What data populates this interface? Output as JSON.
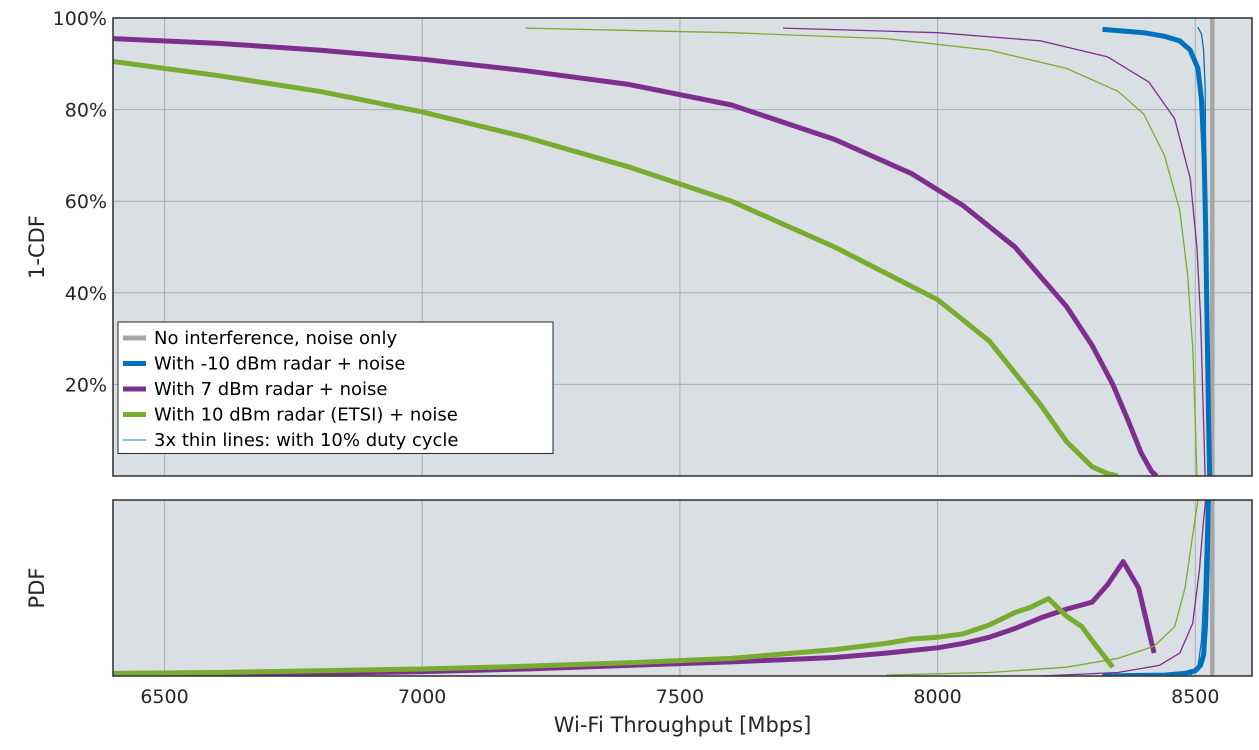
{
  "chart_data": [
    {
      "type": "line",
      "panel": "top",
      "ylabel": "1-CDF",
      "xlim": [
        6400,
        8610
      ],
      "ylim": [
        0,
        100
      ],
      "yticks": [
        20,
        40,
        60,
        80,
        100
      ],
      "ytick_labels": [
        "20%",
        "40%",
        "60%",
        "80%",
        "100%"
      ],
      "xticks": [
        6500,
        7000,
        7500,
        8000,
        8500
      ],
      "grid": true,
      "background": "#d9dfe3",
      "legend": {
        "position": "bottom-left",
        "entries": [
          {
            "label": "No interference, noise only",
            "color": "#a6a6a6"
          },
          {
            "label": "With -10 dBm radar + noise",
            "color": "#0072bd"
          },
          {
            "label": "With 7 dBm radar + noise",
            "color": "#7e2f8e"
          },
          {
            "label": "With 10 dBm radar (ETSI) + noise",
            "color": "#77ac30"
          },
          {
            "label": "3x thin lines: with 10% duty cycle",
            "color": "#5fa8d8"
          }
        ]
      },
      "series": [
        {
          "name": "No interference, noise only",
          "color": "#a6a6a6",
          "width": 4.5,
          "x": [
            8533,
            8533
          ],
          "y": [
            0,
            100
          ]
        },
        {
          "name": "With -10 dBm radar + noise",
          "color": "#0072bd",
          "width": 5,
          "x": [
            8320,
            8400,
            8440,
            8470,
            8490,
            8505,
            8512,
            8517,
            8520,
            8522,
            8524,
            8526,
            8528
          ],
          "y": [
            97.5,
            96.8,
            96,
            95,
            93,
            89,
            82,
            70,
            55,
            40,
            25,
            10,
            0
          ]
        },
        {
          "name": "With 7 dBm radar + noise",
          "color": "#7e2f8e",
          "width": 5,
          "x": [
            6400,
            6600,
            6800,
            7000,
            7200,
            7400,
            7600,
            7800,
            7950,
            8050,
            8150,
            8250,
            8300,
            8340,
            8370,
            8395,
            8415,
            8425
          ],
          "y": [
            95.5,
            94.5,
            93,
            91,
            88.5,
            85.5,
            81,
            73.5,
            66,
            59,
            50,
            37,
            28.5,
            20,
            12,
            5,
            1,
            0
          ]
        },
        {
          "name": "With 10 dBm radar (ETSI) + noise",
          "color": "#77ac30",
          "width": 5,
          "x": [
            6400,
            6600,
            6800,
            7000,
            7200,
            7400,
            7600,
            7800,
            8000,
            8100,
            8200,
            8250,
            8300,
            8330,
            8350
          ],
          "y": [
            90.5,
            87.5,
            84,
            79.5,
            74,
            67.5,
            60,
            50,
            38.5,
            29.5,
            15.5,
            7.5,
            2,
            0.5,
            0
          ]
        },
        {
          "name": "With 10 dBm radar (ETSI) + noise, 10% duty cycle",
          "color": "#77ac30",
          "width": 1.3,
          "x": [
            7200,
            7600,
            7900,
            8100,
            8250,
            8350,
            8400,
            8440,
            8470,
            8485,
            8495,
            8500,
            8503
          ],
          "y": [
            97.8,
            96.8,
            95.5,
            93,
            89,
            84,
            79,
            70,
            58,
            44,
            28,
            12,
            0
          ]
        },
        {
          "name": "With 7 dBm radar + noise, 10% duty cycle",
          "color": "#7e2f8e",
          "width": 1.3,
          "x": [
            7700,
            8000,
            8200,
            8330,
            8410,
            8460,
            8490,
            8503,
            8510,
            8514,
            8517,
            8519
          ],
          "y": [
            97.8,
            96.8,
            95,
            91.5,
            86,
            78,
            65,
            50,
            35,
            20,
            8,
            0
          ]
        },
        {
          "name": "With -10 dBm radar + noise, 10% duty cycle",
          "color": "#0072bd",
          "width": 1.3,
          "x": [
            8505,
            8512,
            8516,
            8519,
            8521,
            8523,
            8525
          ],
          "y": [
            98,
            96.5,
            93,
            85,
            60,
            30,
            0
          ]
        }
      ]
    },
    {
      "type": "line",
      "panel": "bottom",
      "ylabel": "PDF",
      "xlabel": "Wi-Fi Throughput [Mbps]",
      "xlim": [
        6400,
        8610
      ],
      "ylim": [
        0,
        100
      ],
      "xticks": [
        6500,
        7000,
        7500,
        8000,
        8500
      ],
      "xtick_labels": [
        "6500",
        "7000",
        "7500",
        "8000",
        "8500"
      ],
      "grid": true,
      "background": "#d9dfe3",
      "series": [
        {
          "name": "No interference, noise only",
          "color": "#a6a6a6",
          "width": 4.5,
          "x": [
            8533,
            8533
          ],
          "y": [
            0,
            100
          ]
        },
        {
          "name": "With -10 dBm radar + noise",
          "color": "#0072bd",
          "width": 5,
          "x": [
            8320,
            8440,
            8480,
            8500,
            8510,
            8516,
            8520,
            8523,
            8525,
            8527,
            8529
          ],
          "y": [
            0,
            0.5,
            1.5,
            3,
            6,
            12,
            30,
            60,
            100,
            100,
            100
          ]
        },
        {
          "name": "With 7 dBm radar + noise",
          "color": "#7e2f8e",
          "width": 5,
          "x": [
            6400,
            6800,
            7000,
            7200,
            7400,
            7600,
            7800,
            7900,
            8000,
            8050,
            8100,
            8150,
            8200,
            8250,
            8300,
            8330,
            8360,
            8390,
            8420
          ],
          "y": [
            0.5,
            1.5,
            2.5,
            4,
            6,
            8,
            10.5,
            13,
            16,
            18.5,
            22,
            27,
            33,
            38,
            42,
            52,
            65,
            50,
            13
          ]
        },
        {
          "name": "With 10 dBm radar (ETSI) + noise",
          "color": "#77ac30",
          "width": 5,
          "x": [
            6400,
            6600,
            6800,
            7000,
            7200,
            7400,
            7600,
            7800,
            7900,
            7950,
            8000,
            8050,
            8100,
            8150,
            8180,
            8215,
            8250,
            8280,
            8300,
            8340
          ],
          "y": [
            1.5,
            2,
            3,
            4,
            5.5,
            7.5,
            10,
            15,
            18.5,
            21,
            22,
            24,
            29,
            36,
            39,
            44,
            34,
            28,
            20,
            5
          ]
        },
        {
          "name": "With 10 dBm radar (ETSI) + noise, 10% duty cycle",
          "color": "#77ac30",
          "width": 1.3,
          "x": [
            7900,
            8100,
            8250,
            8350,
            8420,
            8460,
            8480,
            8495,
            8505
          ],
          "y": [
            0.5,
            2,
            5,
            10,
            17,
            28,
            50,
            80,
            100
          ]
        },
        {
          "name": "With 7 dBm radar + noise, 10% duty cycle",
          "color": "#7e2f8e",
          "width": 1.3,
          "x": [
            8200,
            8350,
            8430,
            8470,
            8495,
            8508,
            8515,
            8520
          ],
          "y": [
            0,
            2,
            6,
            13,
            30,
            60,
            85,
            100
          ]
        },
        {
          "name": "With -10 dBm radar + noise, 10% duty cycle",
          "color": "#0072bd",
          "width": 1.3,
          "x": [
            8490,
            8505,
            8512,
            8517,
            8520,
            8523
          ],
          "y": [
            0,
            5,
            20,
            50,
            80,
            100
          ]
        }
      ]
    }
  ]
}
